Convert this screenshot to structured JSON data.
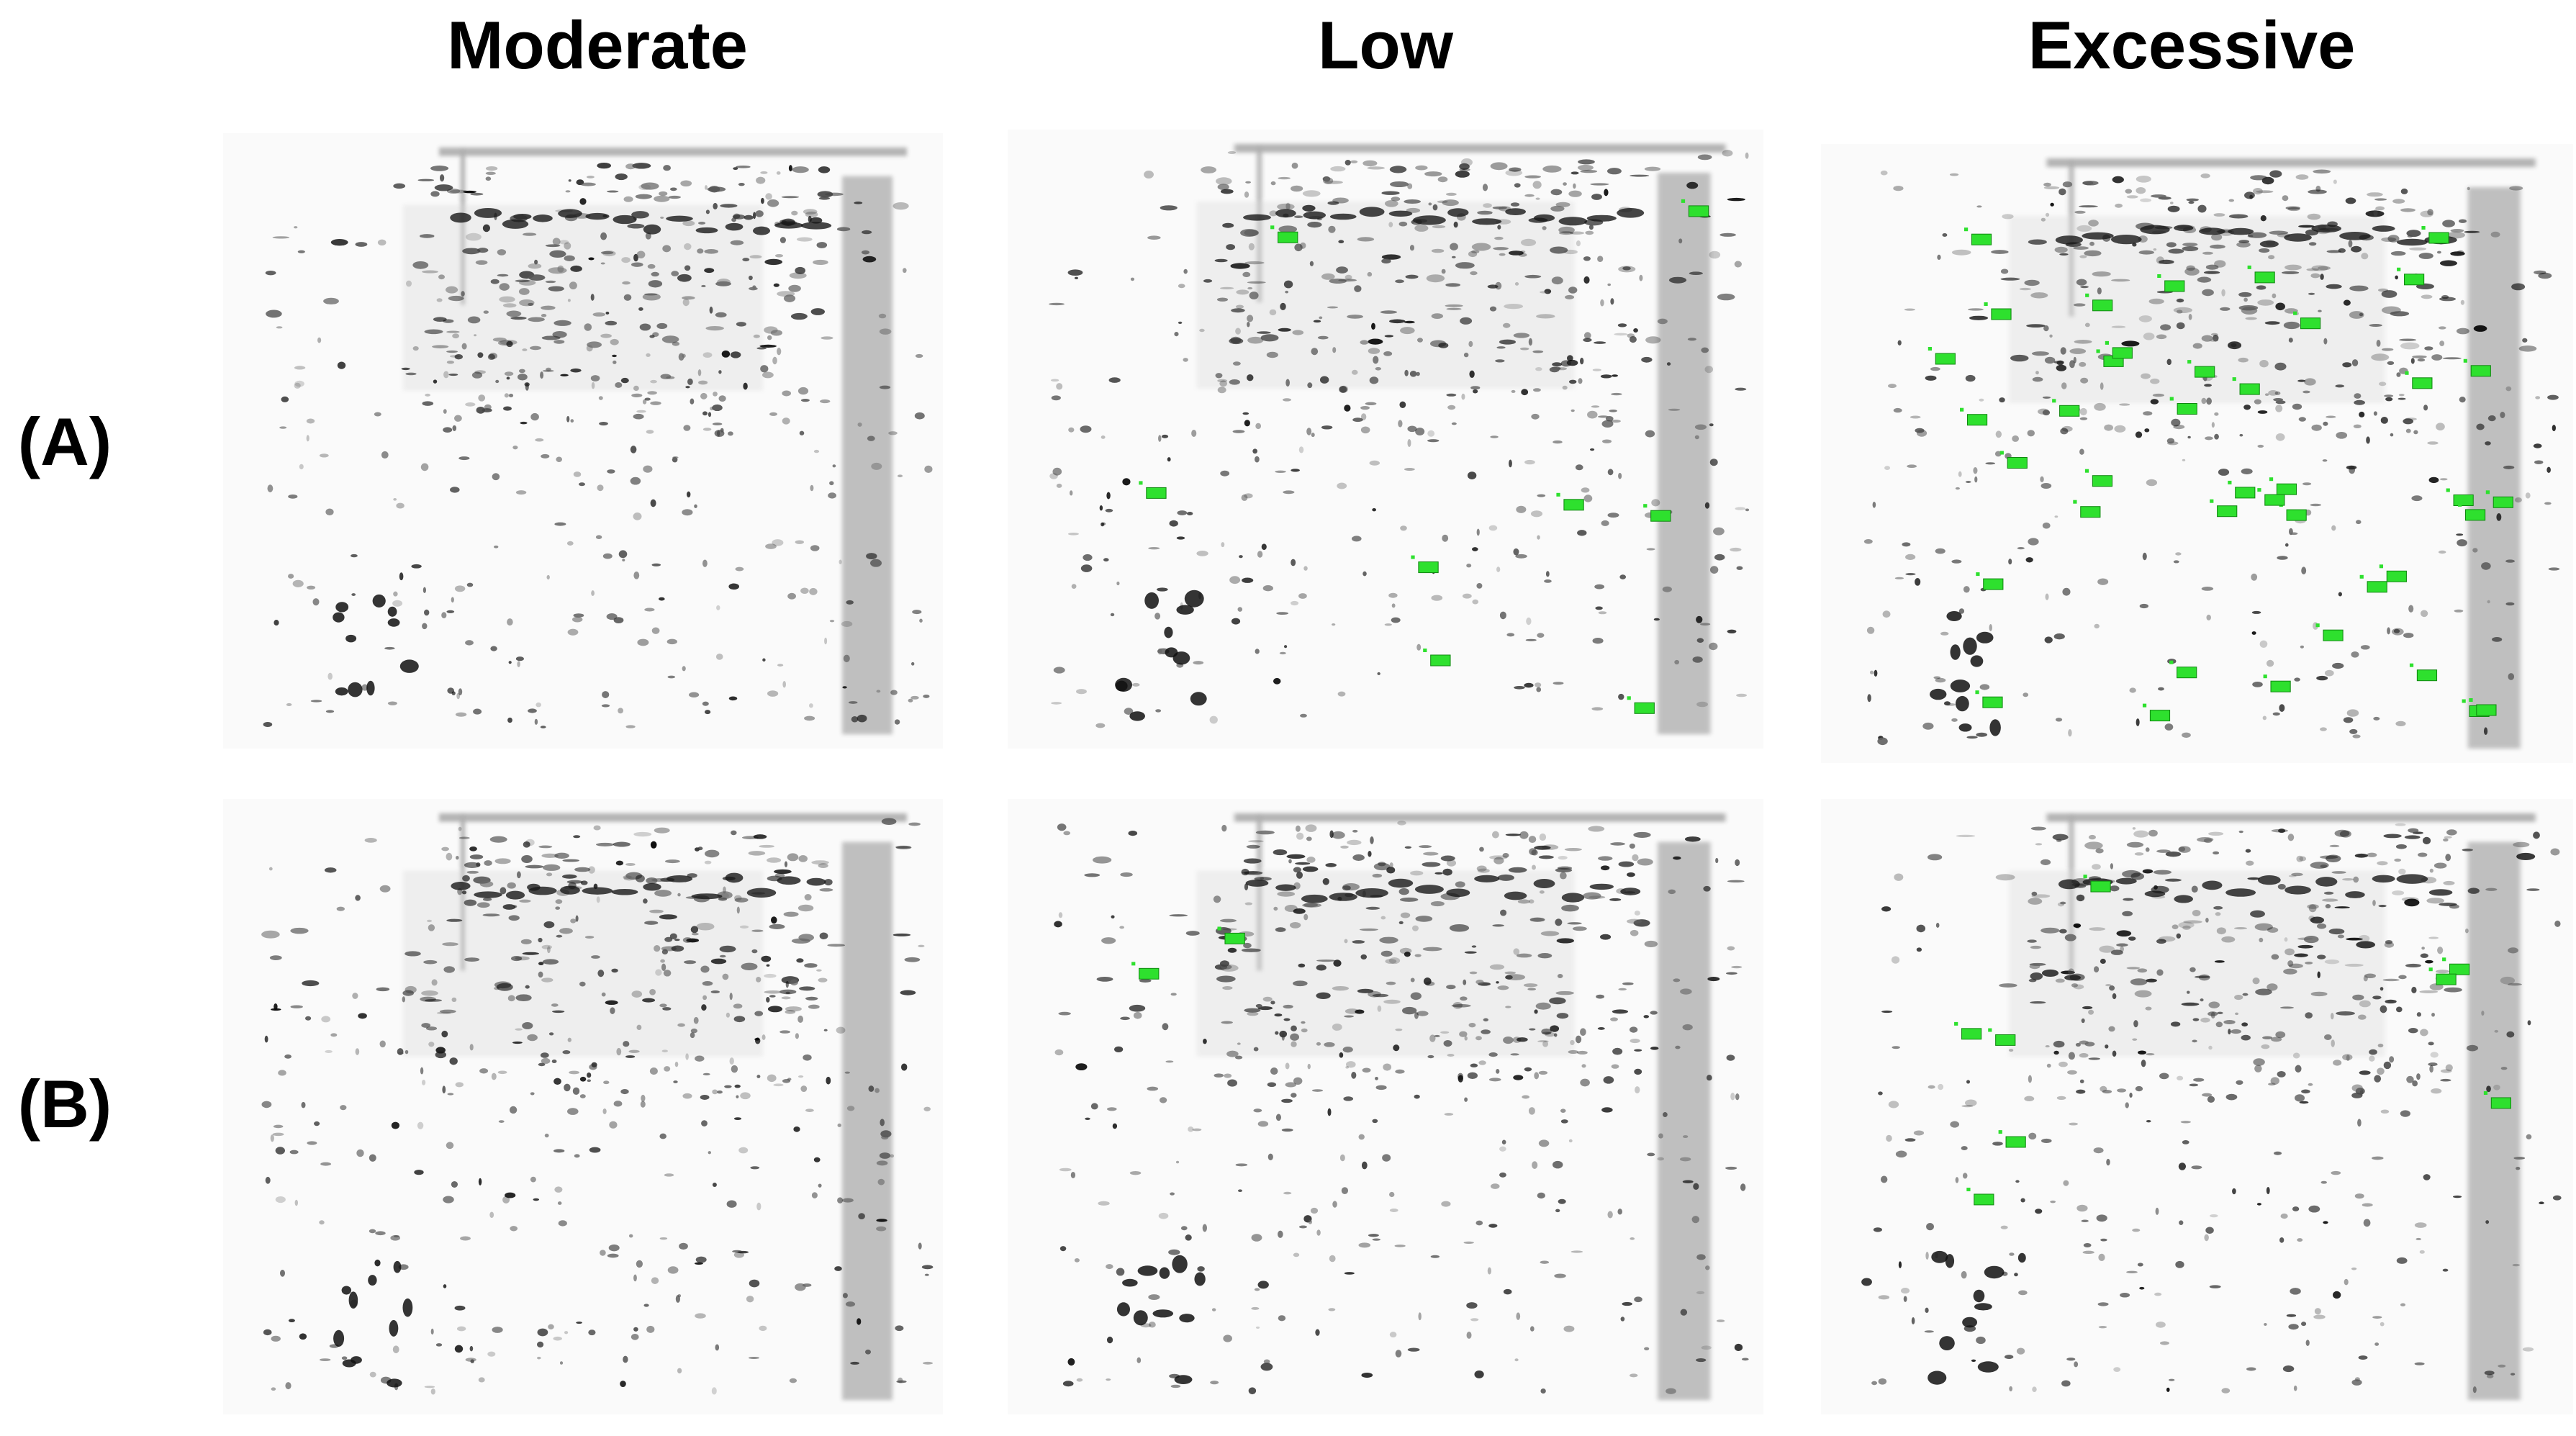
{
  "columns": [
    {
      "id": "moderate",
      "label": "Moderate"
    },
    {
      "id": "low",
      "label": "Low"
    },
    {
      "id": "excessive",
      "label": "Excessive"
    }
  ],
  "rows": [
    {
      "id": "A",
      "label": "(A)"
    },
    {
      "id": "B",
      "label": "(B)"
    }
  ],
  "marker_color": "#2ee02e",
  "marker_counts": {
    "A": {
      "moderate": 0,
      "low": 8,
      "excessive": 40
    },
    "B": {
      "moderate": 0,
      "low": 2,
      "excessive": 8
    }
  }
}
